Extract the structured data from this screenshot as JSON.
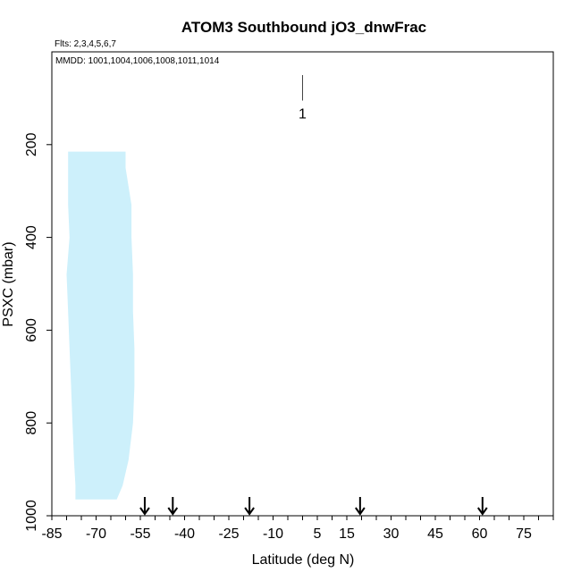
{
  "chart_data": {
    "type": "scatter",
    "title": "ATOM3 Southbound jO3_dnwFrac",
    "flights_note": "Flts: 2,3,4,5,6,7",
    "dates_note": "MMDD: 1001,1004,1006,1008,1011,1014",
    "xlabel": "Latitude (deg N)",
    "ylabel": "PSXC (mbar)",
    "xlim": [
      -85,
      85
    ],
    "ylim": [
      1000,
      0
    ],
    "x_ticks": [
      -85,
      -70,
      -55,
      -40,
      -25,
      -10,
      5,
      15,
      30,
      45,
      60,
      75
    ],
    "x_ticks_labels": [
      "-85",
      "-70",
      "-55",
      "-40",
      "-25",
      "-10",
      "5",
      "15",
      "30",
      "45",
      "60",
      "75"
    ],
    "y_ticks": [
      200,
      400,
      600,
      800,
      1000
    ],
    "y_ticks_labels": [
      "200",
      "400",
      "600",
      "800",
      "1000"
    ],
    "legend": {
      "label": "1",
      "x": 0,
      "y_top": 50,
      "y_bottom": 105
    },
    "data_region": {
      "color": "#cdf0fb",
      "profile": [
        {
          "p": 215,
          "lat_min": -79.5,
          "lat_max": -60
        },
        {
          "p": 250,
          "lat_min": -79.5,
          "lat_max": -60
        },
        {
          "p": 290,
          "lat_min": -79.5,
          "lat_max": -59
        },
        {
          "p": 330,
          "lat_min": -79.5,
          "lat_max": -58
        },
        {
          "p": 400,
          "lat_min": -79,
          "lat_max": -58
        },
        {
          "p": 480,
          "lat_min": -80,
          "lat_max": -57.5
        },
        {
          "p": 560,
          "lat_min": -79.5,
          "lat_max": -57.5
        },
        {
          "p": 640,
          "lat_min": -79,
          "lat_max": -57
        },
        {
          "p": 720,
          "lat_min": -78.5,
          "lat_max": -57
        },
        {
          "p": 800,
          "lat_min": -78,
          "lat_max": -57.5
        },
        {
          "p": 880,
          "lat_min": -77.5,
          "lat_max": -59
        },
        {
          "p": 935,
          "lat_min": -77,
          "lat_max": -61
        },
        {
          "p": 965,
          "lat_min": -77,
          "lat_max": -63
        }
      ]
    },
    "arrows": [
      {
        "lat": -53.5
      },
      {
        "lat": -44
      },
      {
        "lat": -18
      },
      {
        "lat": 19.5
      },
      {
        "lat": 61
      }
    ]
  }
}
